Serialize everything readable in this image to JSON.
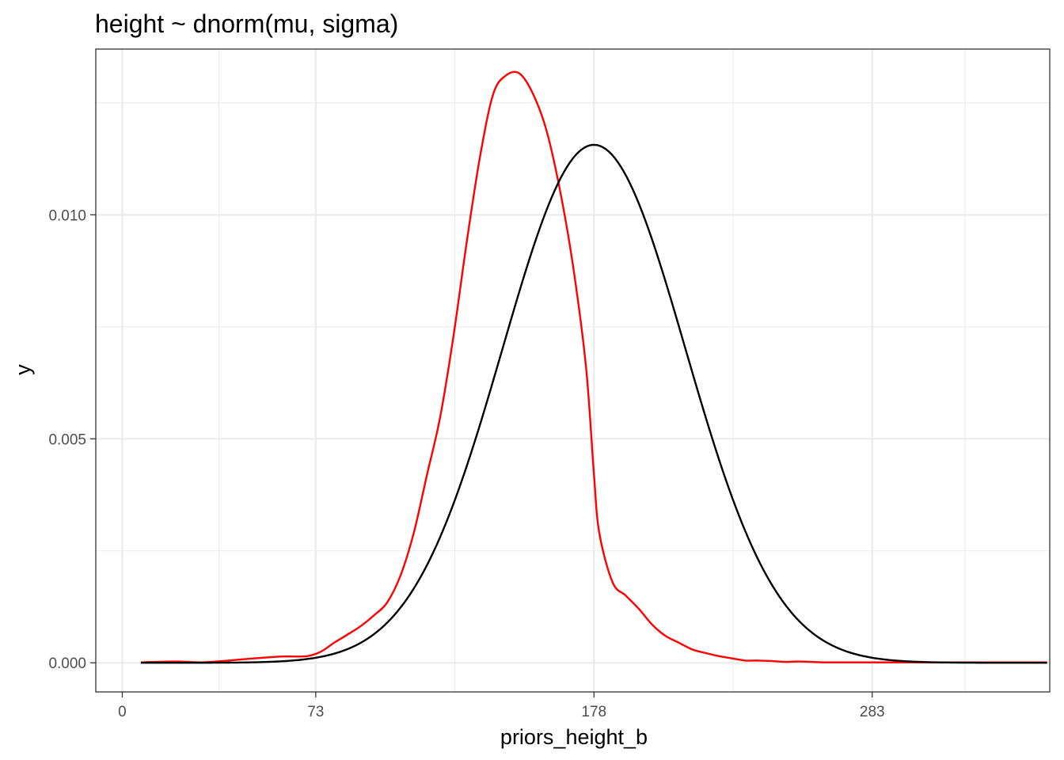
{
  "chart_data": {
    "type": "line",
    "title": "height ~ dnorm(mu, sigma)",
    "xlabel": "priors_height_b",
    "ylabel": "y",
    "xlim": [
      -10,
      350
    ],
    "ylim": [
      -0.00065,
      0.0137
    ],
    "x_ticks": [
      0,
      73,
      178,
      283
    ],
    "x_tick_labels": [
      "0",
      "73",
      "178",
      "283"
    ],
    "x_minor_ticks": [
      36.5,
      125.5,
      230.5,
      318
    ],
    "y_ticks": [
      0.0,
      0.005,
      0.01
    ],
    "y_tick_labels": [
      "0.000",
      "0.005",
      "0.010"
    ],
    "y_minor_ticks": [
      0.0025,
      0.0075,
      0.0125
    ],
    "grid": true,
    "legend": "none",
    "series": [
      {
        "color": "#ff0000",
        "x": [
          7,
          20,
          30,
          40,
          50,
          60,
          65,
          70,
          75,
          80,
          85,
          90,
          95,
          100,
          105,
          110,
          115,
          120,
          125,
          130,
          135,
          140,
          145,
          150,
          155,
          160,
          165,
          170,
          175,
          178,
          180,
          185,
          190,
          195,
          200,
          205,
          210,
          215,
          220,
          225,
          230,
          235,
          240,
          245,
          250,
          255,
          260,
          265,
          270,
          275,
          280,
          285,
          290,
          295,
          300,
          305,
          310,
          315,
          320,
          330,
          340,
          349
        ],
        "y": [
          1e-05,
          3e-05,
          1e-05,
          5e-05,
          0.0001,
          0.00014,
          0.00014,
          0.00015,
          0.00025,
          0.00045,
          0.00063,
          0.00082,
          0.00106,
          0.00135,
          0.00195,
          0.0029,
          0.0042,
          0.0055,
          0.0073,
          0.0094,
          0.0113,
          0.0127,
          0.01312,
          0.01315,
          0.0127,
          0.0119,
          0.0106,
          0.0089,
          0.0066,
          0.0042,
          0.0029,
          0.0018,
          0.0015,
          0.0012,
          0.00085,
          0.0006,
          0.00045,
          0.0003,
          0.00022,
          0.00015,
          0.0001,
          5e-05,
          5e-05,
          4e-05,
          2e-05,
          3e-05,
          2e-05,
          1e-05,
          1e-05,
          1e-05,
          1e-05,
          1e-05,
          1e-05,
          1e-05,
          1e-05,
          1e-05,
          1e-05,
          1e-05,
          1e-05,
          1e-05,
          1e-05,
          1e-05
        ]
      },
      {
        "color": "#000000",
        "mu": 178,
        "sigma": 34.5,
        "x_range": [
          7,
          349
        ]
      }
    ]
  }
}
